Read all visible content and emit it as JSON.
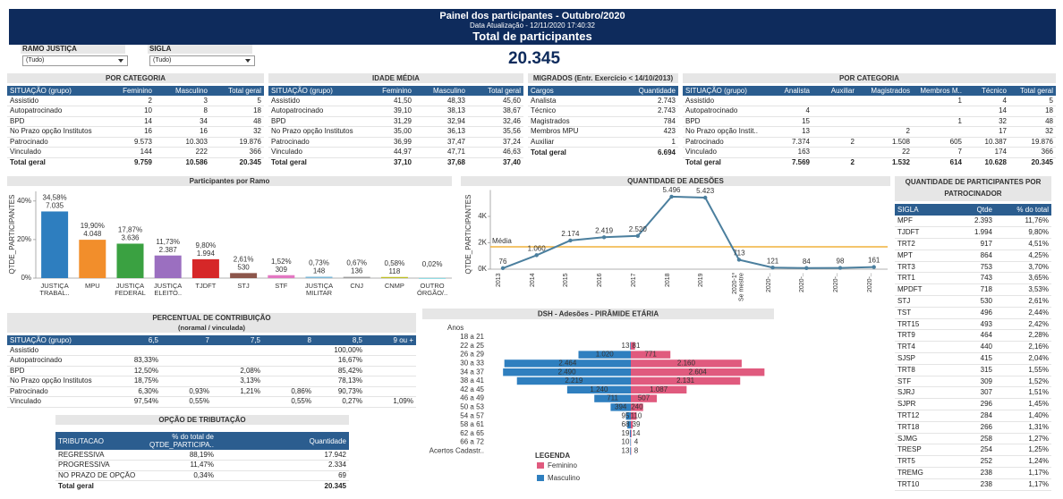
{
  "header": {
    "title": "Painel dos participantes - Outubro/2020",
    "updated": "Data Atualização - 12/11/2020 17:40:32",
    "subtitle": "Total de participantes",
    "total": "20.345"
  },
  "filters": [
    {
      "label": "RAMO JUSTIÇA",
      "value": "(Tudo)"
    },
    {
      "label": "SIGLA",
      "value": "(Tudo)"
    }
  ],
  "tables": [
    {
      "title": "POR CATEGORIA",
      "columns": [
        "SITUAÇÃO (grupo)",
        "Feminino",
        "Masculino",
        "Total geral"
      ],
      "rows": [
        [
          "Assistido",
          "2",
          "3",
          "5"
        ],
        [
          "Autopatrocinado",
          "10",
          "8",
          "18"
        ],
        [
          "BPD",
          "14",
          "34",
          "48"
        ],
        [
          "No Prazo opção Institutos",
          "16",
          "16",
          "32"
        ],
        [
          "Patrocinado",
          "9.573",
          "10.303",
          "19.876"
        ],
        [
          "Vinculado",
          "144",
          "222",
          "366"
        ],
        [
          "Total geral",
          "9.759",
          "10.586",
          "20.345"
        ]
      ]
    },
    {
      "title": "IDADE MÉDIA",
      "columns": [
        "SITUAÇÃO (grupo)",
        "Feminino",
        "Masculino",
        "Total geral"
      ],
      "rows": [
        [
          "Assistido",
          "41,50",
          "48,33",
          "45,60"
        ],
        [
          "Autopatrocinado",
          "39,10",
          "38,13",
          "38,67"
        ],
        [
          "BPD",
          "31,29",
          "32,94",
          "32,46"
        ],
        [
          "No Prazo opção Institutos",
          "35,00",
          "36,13",
          "35,56"
        ],
        [
          "Patrocinado",
          "36,99",
          "37,47",
          "37,24"
        ],
        [
          "Vinculado",
          "44,97",
          "47,71",
          "46,63"
        ],
        [
          "Total geral",
          "37,10",
          "37,68",
          "37,40"
        ]
      ]
    },
    {
      "title": "MIGRADOS (Entr. Exercício < 14/10/2013)",
      "columns": [
        "Cargos",
        "Quantidade"
      ],
      "rows": [
        [
          "Analista",
          "2.743"
        ],
        [
          "Técnico",
          "2.743"
        ],
        [
          "Magistrados",
          "784"
        ],
        [
          "Membros MPU",
          "423"
        ],
        [
          "Auxiliar",
          "1"
        ],
        [
          "Total geral",
          "6.694"
        ]
      ]
    },
    {
      "title": "POR CATEGORIA",
      "columns": [
        "SITUAÇÃO (grupo)",
        "Analista",
        "Auxiliar",
        "Magistrados",
        "Membros M..",
        "Técnico",
        "Total geral"
      ],
      "rows": [
        [
          "Assistido",
          null,
          null,
          null,
          "1",
          "4",
          "5"
        ],
        [
          "Autopatrocinado",
          "4",
          null,
          null,
          null,
          "14",
          "18"
        ],
        [
          "BPD",
          "15",
          null,
          null,
          "1",
          "32",
          "48"
        ],
        [
          "No Prazo opção Instit..",
          "13",
          null,
          "2",
          null,
          "17",
          "32"
        ],
        [
          "Patrocinado",
          "7.374",
          "2",
          "1.508",
          "605",
          "10.387",
          "19.876"
        ],
        [
          "Vinculado",
          "163",
          null,
          "22",
          "7",
          "174",
          "366"
        ],
        [
          "Total geral",
          "7.569",
          "2",
          "1.532",
          "614",
          "10.628",
          "20.345"
        ]
      ]
    },
    {
      "title": "PERCENTUAL DE CONTRIBUIÇÃO",
      "subtitle": "(noramal / vinculada)",
      "columns": [
        "SITUAÇÃO (grupo)",
        "6,5",
        "7",
        "7,5",
        "8",
        "8,5",
        "9 ou +"
      ],
      "rows": [
        [
          "Assistido",
          null,
          null,
          null,
          null,
          "100,00%",
          null
        ],
        [
          "Autopatrocinado",
          "83,33%",
          null,
          null,
          null,
          "16,67%",
          null
        ],
        [
          "BPD",
          "12,50%",
          null,
          "2,08%",
          null,
          "85,42%",
          null
        ],
        [
          "No Prazo opção Institutos",
          "18,75%",
          null,
          "3,13%",
          null,
          "78,13%",
          null
        ],
        [
          "Patrocinado",
          "6,30%",
          "0,93%",
          "1,21%",
          "0,86%",
          "90,73%",
          null
        ],
        [
          "Vinculado",
          "97,54%",
          "0,55%",
          null,
          "0,55%",
          "0,27%",
          "1,09%"
        ]
      ]
    },
    {
      "title": "OPÇÃO DE TRIBUTAÇÃO",
      "columns": [
        "TRIBUTACAO",
        "% do total de QTDE_PARTICIPA..",
        "Quantidade"
      ],
      "rows": [
        [
          "REGRESSIVA",
          "88,19%",
          "17.942"
        ],
        [
          "PROGRESSIVA",
          "11,47%",
          "2.334"
        ],
        [
          "NO PRAZO DE OPÇÃO",
          "0,34%",
          "69"
        ],
        [
          "Total geral",
          null,
          "20.345"
        ]
      ]
    },
    {
      "title": "QUANTIDADE DE PARTICIPANTES POR PATROCINADOR",
      "columns": [
        "SIGLA",
        "Qtde",
        "% do total"
      ],
      "rows": [
        [
          "MPF",
          "2.393",
          "11,76%"
        ],
        [
          "TJDFT",
          "1.994",
          "9,80%"
        ],
        [
          "TRT2",
          "917",
          "4,51%"
        ],
        [
          "MPT",
          "864",
          "4,25%"
        ],
        [
          "TRT3",
          "753",
          "3,70%"
        ],
        [
          "TRT1",
          "743",
          "3,65%"
        ],
        [
          "MPDFT",
          "718",
          "3,53%"
        ],
        [
          "STJ",
          "530",
          "2,61%"
        ],
        [
          "TST",
          "496",
          "2,44%"
        ],
        [
          "TRT15",
          "493",
          "2,42%"
        ],
        [
          "TRT9",
          "464",
          "2,28%"
        ],
        [
          "TRT4",
          "440",
          "2,16%"
        ],
        [
          "SJSP",
          "415",
          "2,04%"
        ],
        [
          "TRT8",
          "315",
          "1,55%"
        ],
        [
          "STF",
          "309",
          "1,52%"
        ],
        [
          "SJRJ",
          "307",
          "1,51%"
        ],
        [
          "SJPR",
          "296",
          "1,45%"
        ],
        [
          "TRT12",
          "284",
          "1,40%"
        ],
        [
          "TRT18",
          "266",
          "1,31%"
        ],
        [
          "SJMG",
          "258",
          "1,27%"
        ],
        [
          "TRESP",
          "254",
          "1,25%"
        ],
        [
          "TRT5",
          "252",
          "1,24%"
        ],
        [
          "TREMG",
          "238",
          "1,17%"
        ],
        [
          "TRT10",
          "238",
          "1,17%"
        ]
      ]
    }
  ],
  "chart_data": [
    {
      "type": "bar",
      "title": "Participantes por Ramo",
      "y_label": "QTDE_PARTICIPANTES",
      "categories": [
        "JUSTIÇA TRABAL..",
        "MPU",
        "JUSTIÇA FEDERAL",
        "JUSTIÇA ELEITO..",
        "TJDFT",
        "STJ",
        "STF",
        "JUSTIÇA MILITAR",
        "CNJ",
        "CNMP",
        "OUTRO ÓRGÃO/.."
      ],
      "values": [
        34.58,
        19.9,
        17.87,
        11.73,
        9.8,
        2.61,
        1.52,
        0.73,
        0.67,
        0.58,
        0.02
      ],
      "value_labels": [
        "34,58%",
        "19,90%",
        "17,87%",
        "11,73%",
        "9,80%",
        "2,61%",
        "1,52%",
        "0,73%",
        "0,67%",
        "0,58%",
        "0,02%"
      ],
      "count_labels": [
        "7.035",
        "4.048",
        "3.636",
        "2.387",
        "1.994",
        "530",
        "309",
        "148",
        "136",
        "118",
        null
      ],
      "colors": [
        "#2e7ebf",
        "#f28e2b",
        "#3aa141",
        "#9b6fc0",
        "#d62728",
        "#8c564b",
        "#e377c2",
        "#7fb9d8",
        "#9e9e9e",
        "#bcbd22",
        "#17becf"
      ],
      "ylim": [
        0,
        45
      ],
      "yticks": [
        {
          "value": 0,
          "label": "0%"
        },
        {
          "value": 20,
          "label": "20%"
        },
        {
          "value": 40,
          "label": "40%"
        }
      ]
    },
    {
      "type": "line",
      "title": "QUANTIDADE DE ADESÕES",
      "y_label": "QTDE_PARTICIPANTES",
      "categories": [
        "2013",
        "2014",
        "2015",
        "2016",
        "2017",
        "2018",
        "2019",
        "2020-1º Se mestre",
        "2020-..",
        "2020-..",
        "2020-..",
        "2020-.."
      ],
      "values": [
        76,
        1060,
        2174,
        2419,
        2520,
        5496,
        5423,
        713,
        121,
        84,
        98,
        161
      ],
      "value_labels": [
        "76",
        "1.060",
        "2.174",
        "2.419",
        "2.520",
        "5.496",
        "5.423",
        "713",
        "121",
        "84",
        "98",
        "161"
      ],
      "color": "#4b7f9e",
      "ylim": [
        0,
        6000
      ],
      "yticks": [
        {
          "value": 0,
          "label": "0K"
        },
        {
          "value": 2000,
          "label": "2K"
        },
        {
          "value": 4000,
          "label": "4K"
        }
      ],
      "reference_line": {
        "label": "Média",
        "value": 1695,
        "color": "#f0b23c"
      }
    },
    {
      "type": "pyramid",
      "title": "DSH - Adesões - PIRÂMIDE ETÁRIA",
      "category_header": "Anos",
      "categories": [
        "18 a 21",
        "22 a 25",
        "26 a 29",
        "30 a 33",
        "34 a 37",
        "38 a 41",
        "42 a 45",
        "46 a 49",
        "50 a 53",
        "54 a 57",
        "58 a 61",
        "62 a 65",
        "66 a 72",
        "Acertos Cadastr.."
      ],
      "xlim": [
        0,
        2650
      ],
      "legend_title": "LEGENDA",
      "series": [
        {
          "name": "Feminino",
          "color": "#e05a7e",
          "values": [
            null,
            81,
            771,
            2160,
            2604,
            2131,
            1087,
            507,
            240,
            110,
            39,
            14,
            4,
            8
          ],
          "value_labels": [
            null,
            "81",
            "771",
            "2.160",
            "2.604",
            "2.131",
            "1.087",
            "507",
            "240",
            "110",
            "39",
            "14",
            "4",
            "8"
          ]
        },
        {
          "name": "Masculino",
          "color": "#2f7fbf",
          "values": [
            null,
            13,
            1020,
            2464,
            2490,
            2219,
            1240,
            711,
            394,
            95,
            68,
            19,
            10,
            13
          ],
          "value_labels": [
            null,
            "13",
            "1.020",
            "2.464",
            "2.490",
            "2.219",
            "1.240",
            "711",
            "394",
            "95",
            "68",
            "19",
            "10",
            "13"
          ]
        }
      ]
    }
  ]
}
